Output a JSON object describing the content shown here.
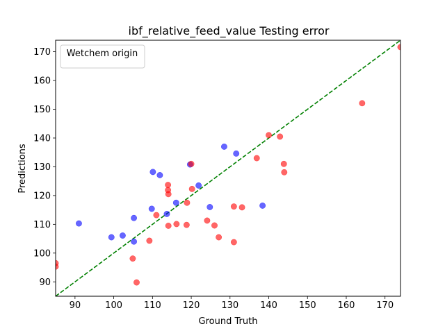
{
  "chart_data": {
    "type": "scatter",
    "title": "ibf_relative_feed_value Testing error",
    "xlabel": "Ground Truth",
    "ylabel": "Predictions",
    "xlim": [
      85,
      174
    ],
    "ylim": [
      85,
      174
    ],
    "xticks": [
      90,
      100,
      110,
      120,
      130,
      140,
      150,
      160,
      170
    ],
    "yticks": [
      90,
      100,
      110,
      120,
      130,
      140,
      150,
      160,
      170
    ],
    "grid": false,
    "legend": {
      "title": "Wetchem origin",
      "placement": "top-left"
    },
    "reference_line": {
      "style": "dashed",
      "color": "#008000",
      "from": [
        85,
        85
      ],
      "to": [
        174,
        174
      ]
    },
    "series": [
      {
        "color": "#0000ff",
        "points": [
          [
            91,
            110.3
          ],
          [
            99.4,
            105.5
          ],
          [
            102.3,
            106.1
          ],
          [
            105.2,
            104
          ],
          [
            105.2,
            112.2
          ],
          [
            109.8,
            115.4
          ],
          [
            110.1,
            128.2
          ],
          [
            111.9,
            127.1
          ],
          [
            113.7,
            113.6
          ],
          [
            116.1,
            117.5
          ],
          [
            119.7,
            130.8
          ],
          [
            121.9,
            123.5
          ],
          [
            124.8,
            116
          ],
          [
            128.5,
            137
          ],
          [
            131.6,
            134.6
          ],
          [
            138.4,
            116.5
          ]
        ]
      },
      {
        "color": "#ff0000",
        "points": [
          [
            85,
            96.5
          ],
          [
            85,
            95.3
          ],
          [
            104.9,
            98.1
          ],
          [
            105.9,
            89.8
          ],
          [
            109.2,
            104.3
          ],
          [
            111,
            113.2
          ],
          [
            114,
            123.7
          ],
          [
            114,
            121.9
          ],
          [
            114.1,
            120.5
          ],
          [
            114.1,
            109.5
          ],
          [
            116.2,
            110.1
          ],
          [
            118.8,
            109.8
          ],
          [
            118.9,
            117.5
          ],
          [
            120,
            131
          ],
          [
            120.2,
            122.3
          ],
          [
            124.1,
            111.3
          ],
          [
            126,
            109.6
          ],
          [
            127.1,
            105.5
          ],
          [
            131,
            116.2
          ],
          [
            131,
            103.8
          ],
          [
            133.1,
            115.9
          ],
          [
            136.9,
            133
          ],
          [
            140,
            141
          ],
          [
            142.9,
            140.5
          ],
          [
            143.9,
            131
          ],
          [
            144,
            128.1
          ],
          [
            164.1,
            152.1
          ],
          [
            174,
            171.6
          ]
        ]
      }
    ]
  }
}
